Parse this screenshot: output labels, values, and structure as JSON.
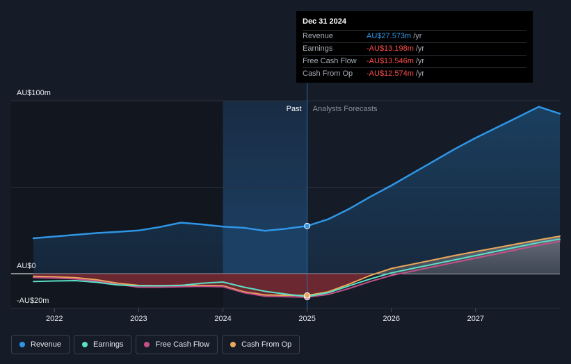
{
  "chart_data": {
    "type": "line",
    "y_unit": "AU$m",
    "ylim": [
      -20,
      100
    ],
    "y_ticks": [
      {
        "value": 100,
        "label": "AU$100m"
      },
      {
        "value": 0,
        "label": "AU$0"
      },
      {
        "value": -20,
        "label": "-AU$20m"
      }
    ],
    "x_ticks": [
      {
        "value": 2022,
        "label": "2022"
      },
      {
        "value": 2023,
        "label": "2023"
      },
      {
        "value": 2024,
        "label": "2024"
      },
      {
        "value": 2025,
        "label": "2025"
      },
      {
        "value": 2026,
        "label": "2026"
      },
      {
        "value": 2027,
        "label": "2027"
      }
    ],
    "xlim": [
      2021.75,
      2028.0
    ],
    "past_region": [
      2024.0,
      2025.0
    ],
    "divider_x": 2025.0,
    "past_label": "Past",
    "forecast_label": "Analysts Forecasts",
    "series": [
      {
        "name": "Revenue",
        "color": "#2f96e6",
        "points": [
          [
            2021.75,
            20.5
          ],
          [
            2022.0,
            21.5
          ],
          [
            2022.25,
            22.5
          ],
          [
            2022.5,
            23.5
          ],
          [
            2022.75,
            24.2
          ],
          [
            2023.0,
            25
          ],
          [
            2023.25,
            27
          ],
          [
            2023.5,
            29.5
          ],
          [
            2023.75,
            28.5
          ],
          [
            2024.0,
            27.2
          ],
          [
            2024.25,
            26.5
          ],
          [
            2024.5,
            24.8
          ],
          [
            2024.75,
            26
          ],
          [
            2025.0,
            27.573
          ],
          [
            2025.25,
            31.5
          ],
          [
            2025.5,
            37.5
          ],
          [
            2025.75,
            44.5
          ],
          [
            2026.0,
            51
          ],
          [
            2026.25,
            58
          ],
          [
            2026.5,
            65
          ],
          [
            2026.75,
            72
          ],
          [
            2027.0,
            78.5
          ],
          [
            2027.25,
            84.5
          ],
          [
            2027.5,
            90.5
          ],
          [
            2027.75,
            96.5
          ],
          [
            2028.0,
            92.5
          ]
        ]
      },
      {
        "name": "Earnings",
        "color": "#5ce0c6",
        "points": [
          [
            2021.75,
            -4.5
          ],
          [
            2022.0,
            -4.2
          ],
          [
            2022.25,
            -4.0
          ],
          [
            2022.5,
            -5.0
          ],
          [
            2022.75,
            -6.5
          ],
          [
            2023.0,
            -7.0
          ],
          [
            2023.25,
            -7.0
          ],
          [
            2023.5,
            -6.8
          ],
          [
            2023.75,
            -5.5
          ],
          [
            2024.0,
            -4.8
          ],
          [
            2024.25,
            -7.8
          ],
          [
            2024.5,
            -10.2
          ],
          [
            2024.75,
            -11.8
          ],
          [
            2025.0,
            -13.198
          ],
          [
            2025.25,
            -11
          ],
          [
            2025.5,
            -7
          ],
          [
            2025.75,
            -3
          ],
          [
            2026.0,
            0.5
          ],
          [
            2026.25,
            3
          ],
          [
            2026.5,
            5.5
          ],
          [
            2026.75,
            8
          ],
          [
            2027.0,
            10.5
          ],
          [
            2027.25,
            13
          ],
          [
            2027.5,
            15.5
          ],
          [
            2027.75,
            18
          ],
          [
            2028.0,
            20
          ]
        ]
      },
      {
        "name": "Free Cash Flow",
        "color": "#c4508a",
        "points": [
          [
            2021.75,
            -2.2
          ],
          [
            2022.0,
            -2.5
          ],
          [
            2022.25,
            -3.0
          ],
          [
            2022.5,
            -4.3
          ],
          [
            2022.75,
            -6.2
          ],
          [
            2023.0,
            -7.8
          ],
          [
            2023.25,
            -7.8
          ],
          [
            2023.5,
            -7.5
          ],
          [
            2023.75,
            -7.3
          ],
          [
            2024.0,
            -7.5
          ],
          [
            2024.25,
            -11
          ],
          [
            2024.5,
            -13
          ],
          [
            2024.75,
            -13.3
          ],
          [
            2025.0,
            -13.546
          ],
          [
            2025.25,
            -12
          ],
          [
            2025.5,
            -8.5
          ],
          [
            2025.75,
            -4.5
          ],
          [
            2026.0,
            -1
          ],
          [
            2026.25,
            1.5
          ],
          [
            2026.5,
            4
          ],
          [
            2026.75,
            6.5
          ],
          [
            2027.0,
            9
          ],
          [
            2027.25,
            11.5
          ],
          [
            2027.5,
            14
          ],
          [
            2027.75,
            16.5
          ],
          [
            2028.0,
            18.8
          ]
        ]
      },
      {
        "name": "Cash From Op",
        "color": "#e9a95a",
        "points": [
          [
            2021.75,
            -1.5
          ],
          [
            2022.0,
            -1.8
          ],
          [
            2022.25,
            -2.3
          ],
          [
            2022.5,
            -3.5
          ],
          [
            2022.75,
            -5.5
          ],
          [
            2023.0,
            -6.8
          ],
          [
            2023.25,
            -6.9
          ],
          [
            2023.5,
            -6.7
          ],
          [
            2023.75,
            -6.8
          ],
          [
            2024.0,
            -7
          ],
          [
            2024.25,
            -10.5
          ],
          [
            2024.5,
            -12.3
          ],
          [
            2024.75,
            -12.5
          ],
          [
            2025.0,
            -12.574
          ],
          [
            2025.25,
            -10.5
          ],
          [
            2025.5,
            -6
          ],
          [
            2025.75,
            -1
          ],
          [
            2026.0,
            3
          ],
          [
            2026.25,
            5.5
          ],
          [
            2026.5,
            8
          ],
          [
            2026.75,
            10.5
          ],
          [
            2027.0,
            12.8
          ],
          [
            2027.25,
            15
          ],
          [
            2027.5,
            17.3
          ],
          [
            2027.75,
            19.5
          ],
          [
            2028.0,
            21.7
          ]
        ]
      }
    ]
  },
  "tooltip": {
    "date": "Dec 31 2024",
    "rows": [
      {
        "name": "Revenue",
        "value": "AU$27.573m",
        "unit": "/yr",
        "color": "#2f96e6"
      },
      {
        "name": "Earnings",
        "value": "-AU$13.198m",
        "unit": "/yr",
        "color": "#ff4d4d"
      },
      {
        "name": "Free Cash Flow",
        "value": "-AU$13.546m",
        "unit": "/yr",
        "color": "#ff4d4d"
      },
      {
        "name": "Cash From Op",
        "value": "-AU$12.574m",
        "unit": "/yr",
        "color": "#ff4d4d"
      }
    ]
  },
  "legend": [
    {
      "label": "Revenue",
      "color": "#2f96e6"
    },
    {
      "label": "Earnings",
      "color": "#5ce0c6"
    },
    {
      "label": "Free Cash Flow",
      "color": "#c4508a"
    },
    {
      "label": "Cash From Op",
      "color": "#e9a95a"
    }
  ]
}
